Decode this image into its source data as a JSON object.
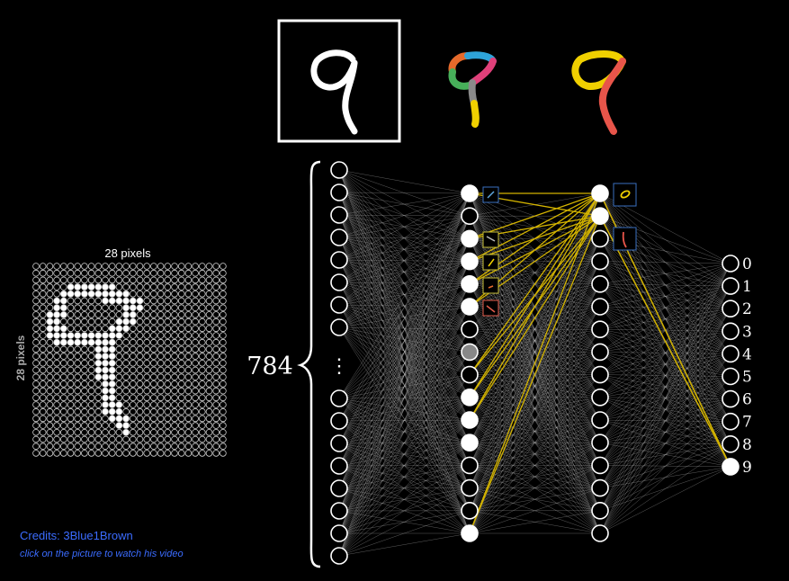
{
  "grid": {
    "top_label": "28 pixels",
    "side_label": "28 pixels",
    "size": 28,
    "digit_cells": [
      [
        3,
        5
      ],
      [
        3,
        6
      ],
      [
        3,
        7
      ],
      [
        3,
        8
      ],
      [
        3,
        9
      ],
      [
        3,
        10
      ],
      [
        3,
        11
      ],
      [
        4,
        4
      ],
      [
        4,
        5
      ],
      [
        4,
        6
      ],
      [
        4,
        7
      ],
      [
        4,
        8
      ],
      [
        4,
        9
      ],
      [
        4,
        10
      ],
      [
        4,
        11
      ],
      [
        4,
        12
      ],
      [
        4,
        13
      ],
      [
        5,
        3
      ],
      [
        5,
        4
      ],
      [
        5,
        10
      ],
      [
        5,
        11
      ],
      [
        5,
        12
      ],
      [
        5,
        13
      ],
      [
        5,
        14
      ],
      [
        5,
        15
      ],
      [
        6,
        3
      ],
      [
        6,
        4
      ],
      [
        6,
        13
      ],
      [
        6,
        14
      ],
      [
        6,
        15
      ],
      [
        7,
        2
      ],
      [
        7,
        3
      ],
      [
        7,
        4
      ],
      [
        7,
        13
      ],
      [
        7,
        14
      ],
      [
        8,
        2
      ],
      [
        8,
        3
      ],
      [
        8,
        12
      ],
      [
        8,
        13
      ],
      [
        8,
        14
      ],
      [
        9,
        2
      ],
      [
        9,
        3
      ],
      [
        9,
        4
      ],
      [
        9,
        11
      ],
      [
        9,
        12
      ],
      [
        9,
        13
      ],
      [
        10,
        2
      ],
      [
        10,
        3
      ],
      [
        10,
        4
      ],
      [
        10,
        5
      ],
      [
        10,
        6
      ],
      [
        10,
        7
      ],
      [
        10,
        8
      ],
      [
        10,
        9
      ],
      [
        10,
        10
      ],
      [
        10,
        11
      ],
      [
        10,
        12
      ],
      [
        11,
        3
      ],
      [
        11,
        4
      ],
      [
        11,
        5
      ],
      [
        11,
        6
      ],
      [
        11,
        7
      ],
      [
        11,
        8
      ],
      [
        11,
        9
      ],
      [
        11,
        10
      ],
      [
        11,
        11
      ],
      [
        12,
        9
      ],
      [
        12,
        10
      ],
      [
        12,
        11
      ],
      [
        13,
        9
      ],
      [
        13,
        10
      ],
      [
        13,
        11
      ],
      [
        14,
        9
      ],
      [
        14,
        10
      ],
      [
        14,
        11
      ],
      [
        15,
        9
      ],
      [
        15,
        10
      ],
      [
        15,
        11
      ],
      [
        16,
        9
      ],
      [
        16,
        10
      ],
      [
        16,
        11
      ],
      [
        17,
        10
      ],
      [
        17,
        11
      ],
      [
        18,
        10
      ],
      [
        18,
        11
      ],
      [
        19,
        10
      ],
      [
        19,
        11
      ],
      [
        20,
        10
      ],
      [
        20,
        11
      ],
      [
        20,
        12
      ],
      [
        21,
        10
      ],
      [
        21,
        11
      ],
      [
        21,
        12
      ],
      [
        22,
        11
      ],
      [
        22,
        12
      ],
      [
        22,
        13
      ],
      [
        23,
        12
      ],
      [
        23,
        13
      ],
      [
        24,
        13
      ]
    ]
  },
  "network": {
    "input_count_label": "784",
    "ellipsis": "⋮",
    "output_labels": [
      "0",
      "1",
      "2",
      "3",
      "4",
      "5",
      "6",
      "7",
      "8",
      "9"
    ],
    "active_output": 9
  },
  "credits": {
    "text": "Credits: 3Blue1Brown",
    "hint": "click on the picture to watch his video"
  },
  "colors": {
    "edge": "#bdbdbd",
    "highlight": "#d4b400",
    "credit": "#3b6cff"
  }
}
